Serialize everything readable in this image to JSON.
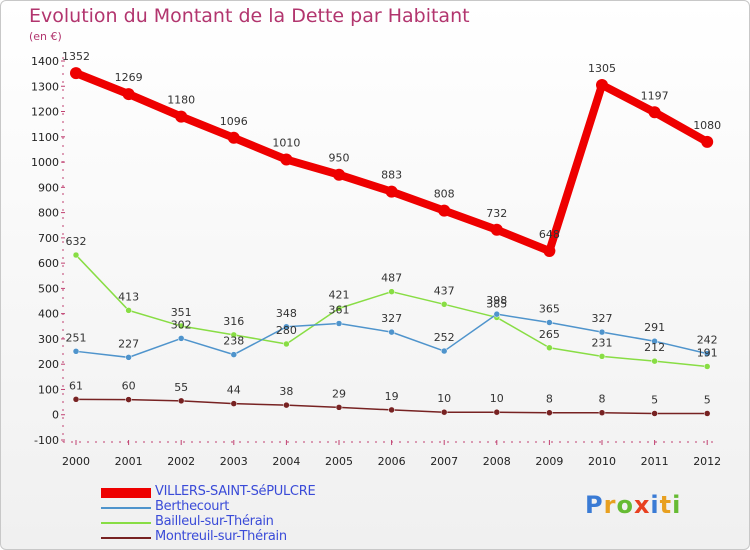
{
  "title": "Evolution du Montant de la Dette par Habitant",
  "unit": "(en €)",
  "logo": "Proxiti",
  "chart_data": {
    "type": "line",
    "x": [
      "2000",
      "2001",
      "2002",
      "2003",
      "2004",
      "2005",
      "2006",
      "2007",
      "2008",
      "2009",
      "2010",
      "2011",
      "2012"
    ],
    "ylim": [
      -100,
      1400
    ],
    "yticks": [
      -100,
      0,
      100,
      200,
      300,
      400,
      500,
      600,
      700,
      800,
      900,
      1000,
      1100,
      1200,
      1300,
      1400
    ],
    "grid": false,
    "legend_position": "bottom-left",
    "series": [
      {
        "name": "VILLERS-SAINT-SéPULCRE",
        "color": "#ee0000",
        "values": [
          1352,
          1269,
          1180,
          1096,
          1010,
          950,
          883,
          808,
          732,
          648,
          1305,
          1197,
          1080
        ],
        "labels": [
          "1352",
          "1269",
          "1180",
          "1096",
          "1010",
          "950",
          "883",
          "808",
          "732",
          "648",
          "1305",
          "1197",
          "1080"
        ]
      },
      {
        "name": "Berthecourt",
        "color": "#4f94cc",
        "values": [
          251,
          227,
          302,
          238,
          348,
          361,
          327,
          252,
          398,
          365,
          327,
          291,
          242
        ],
        "labels": [
          "251",
          "227",
          "302",
          "238",
          "348",
          "361",
          "327",
          "252",
          "398",
          "365",
          "327",
          "291",
          "242"
        ]
      },
      {
        "name": "Bailleul-sur-Thérain",
        "color": "#88dd44",
        "values": [
          632,
          413,
          351,
          316,
          280,
          421,
          487,
          437,
          385,
          265,
          231,
          212,
          191
        ],
        "labels": [
          "632",
          "413",
          "351",
          "316",
          "280",
          "421",
          "487",
          "437",
          "385",
          "265",
          "231",
          "212",
          "191"
        ]
      },
      {
        "name": "Montreuil-sur-Thérain",
        "color": "#772222",
        "values": [
          61,
          60,
          55,
          44,
          38,
          29,
          19,
          10,
          10,
          8,
          8,
          5,
          5
        ],
        "labels": [
          "61",
          "60",
          "55",
          "44",
          "38",
          "29",
          "19",
          "10",
          "10",
          "8",
          "8",
          "5",
          "5"
        ]
      }
    ]
  }
}
